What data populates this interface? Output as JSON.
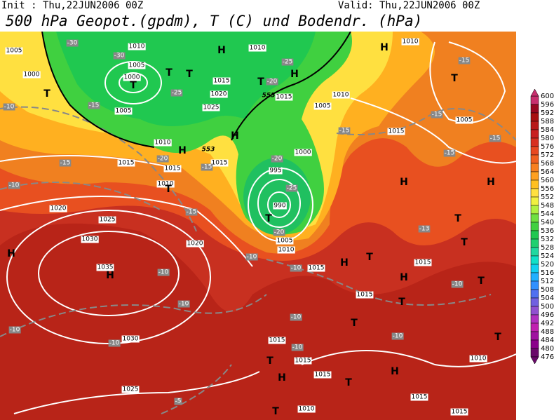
{
  "header": {
    "init": "Init : Thu,22JUN2006 00Z",
    "valid": "Valid: Thu,22JUN2006 00Z",
    "title": "500 hPa Geopot.(gpdm), T (C) und Bodendr. (hPa)"
  },
  "map": {
    "pressure_labels": [
      "1005",
      "1010",
      "1010",
      "1000",
      "1000",
      "1005",
      "1015",
      "1020",
      "1025",
      "1015",
      "1010",
      "1005",
      "1005",
      "1010",
      "1015",
      "1015",
      "1015",
      "1010",
      "1000",
      "1015",
      "1005",
      "1020",
      "1025",
      "1030",
      "1020",
      "1035",
      "995",
      "990",
      "1005",
      "1010",
      "1015",
      "1015",
      "1015",
      "1015",
      "1015",
      "1015",
      "1030",
      "1025",
      "1010",
      "1015",
      "1010",
      "1015",
      "1010"
    ],
    "temperature_labels": [
      "-30",
      "-30",
      "-25",
      "-20",
      "-25",
      "-15",
      "-10",
      "-20",
      "-25",
      "-15",
      "-15",
      "-15",
      "-15",
      "-15",
      "-15",
      "-10",
      "-20",
      "-15",
      "-15",
      "-10",
      "-10",
      "-10",
      "-10",
      "-10",
      "-10",
      "-10",
      "-10",
      "-10",
      "-13",
      "-10",
      "-5",
      "-20"
    ],
    "height_labels": [
      "555",
      "553"
    ],
    "centers": [
      "H",
      "T",
      "T",
      "T",
      "T",
      "H",
      "T",
      "H",
      "H",
      "T",
      "T",
      "H",
      "H",
      "T",
      "T",
      "H",
      "H",
      "H",
      "T",
      "H",
      "T",
      "T",
      "T",
      "T",
      "T",
      "H",
      "T",
      "H",
      "T",
      "H",
      "T"
    ]
  },
  "colorbar": {
    "values": [
      600,
      596,
      592,
      588,
      584,
      580,
      576,
      572,
      568,
      564,
      560,
      556,
      552,
      548,
      544,
      540,
      536,
      532,
      528,
      524,
      520,
      516,
      512,
      508,
      504,
      500,
      496,
      492,
      488,
      484,
      480,
      476
    ],
    "colors": [
      "#c8306e",
      "#980820",
      "#a81010",
      "#b81818",
      "#c82020",
      "#d83020",
      "#e84820",
      "#f06020",
      "#f88020",
      "#ffa020",
      "#ffc020",
      "#ffe040",
      "#f0f040",
      "#b0f040",
      "#70e040",
      "#40d040",
      "#20c850",
      "#20d070",
      "#20d8a0",
      "#10e0c8",
      "#10d0f0",
      "#20b0ff",
      "#3090ff",
      "#5070f0",
      "#7060e0",
      "#9050d0",
      "#b030c0",
      "#c020b0",
      "#a010a0",
      "#8b008b",
      "#6a0a6a"
    ]
  }
}
